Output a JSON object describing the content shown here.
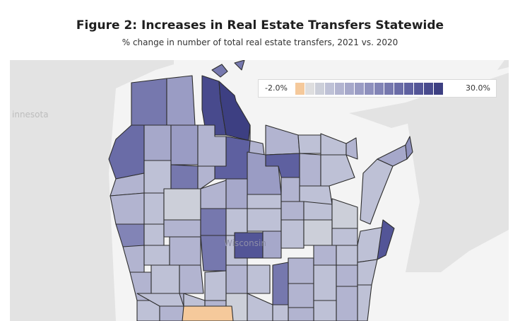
{
  "figure": {
    "title": "Figure 2: Increases in Real Estate Transfers Statewide",
    "subtitle": "% change in number of total real estate transfers, 2021 vs. 2020"
  },
  "map": {
    "background_labels": {
      "neighbor_region": "innesota",
      "state": "Wisconsin"
    },
    "legend": {
      "min_label": "-2.0%",
      "max_label": "30.0%",
      "min": -2.0,
      "max": 30.0,
      "colors": [
        "#f5c99b",
        "#dededf",
        "#cccfd9",
        "#bec1d6",
        "#b2b4d0",
        "#a6a8ca",
        "#9a9cc4",
        "#8e90bd",
        "#8284b6",
        "#7678ae",
        "#6a6ca7",
        "#5e60a0",
        "#535597",
        "#484a8d",
        "#3d3f82"
      ]
    },
    "colors": {
      "land": "#e3e3e3",
      "water": "#f4f4f4",
      "county_border": "#2d2d2d"
    }
  }
}
